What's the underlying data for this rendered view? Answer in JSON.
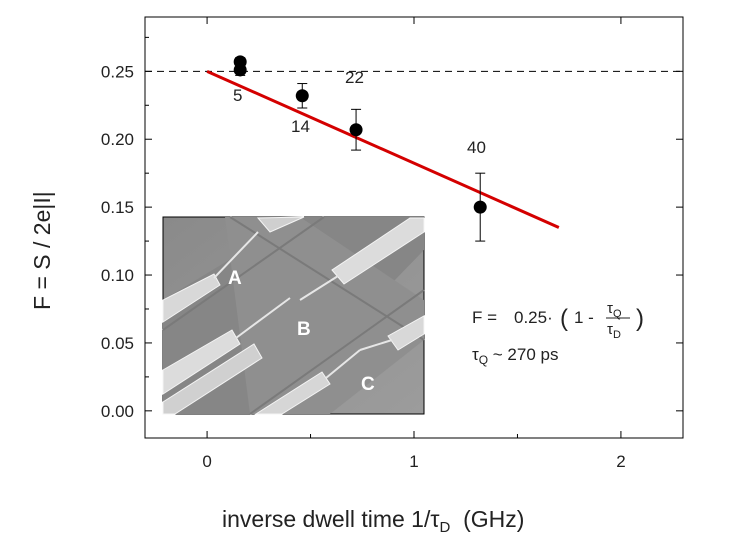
{
  "chart_data": {
    "type": "scatter",
    "xlabel": {
      "pre": "inverse dwell time 1/",
      "tau": "τ",
      "sub": "D",
      "post": "  (GHz)"
    },
    "ylabel": "F = S / 2e|I|",
    "xlim": [
      -0.3,
      2.3
    ],
    "ylim": [
      -0.02,
      0.29
    ],
    "xticks": [
      0,
      1,
      2
    ],
    "xtick_labels": [
      "0",
      "1",
      "2"
    ],
    "yticks": [
      0.0,
      0.05,
      0.1,
      0.15,
      0.2,
      0.25
    ],
    "ytick_labels": [
      "0.00",
      "0.05",
      "0.10",
      "0.15",
      "0.20",
      "0.25"
    ],
    "reference_line": {
      "y": 0.25,
      "style": "dashed"
    },
    "points": [
      {
        "x": 0.16,
        "y": 0.257,
        "yerr": 0.003,
        "label": ""
      },
      {
        "x": 0.16,
        "y": 0.251,
        "yerr": 0.004,
        "label": "5"
      },
      {
        "x": 0.46,
        "y": 0.232,
        "yerr": 0.009,
        "label": "14"
      },
      {
        "x": 0.72,
        "y": 0.207,
        "yerr": 0.015,
        "label": "22"
      },
      {
        "x": 1.32,
        "y": 0.15,
        "yerr": 0.025,
        "label": "40"
      }
    ],
    "fit_line": {
      "x": [
        0,
        1.7
      ],
      "y": [
        0.25,
        0.135
      ],
      "color": "#d40000"
    },
    "formula": {
      "lhs": "F =",
      "coef": "0.25·",
      "one_minus": "1 -",
      "num_tau": "τ",
      "num_sub": "Q",
      "den_tau": "τ",
      "den_sub": "D",
      "tau_q_tau": "τ",
      "tau_q_sub": "Q",
      "tau_q_value": " ~ 270 ps"
    },
    "inset": {
      "labels": [
        "A",
        "B",
        "C"
      ]
    }
  }
}
